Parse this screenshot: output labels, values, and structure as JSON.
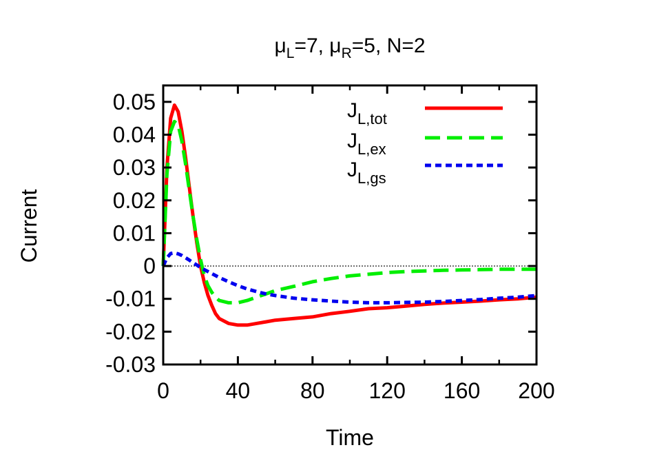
{
  "chart_data": {
    "type": "line",
    "title": {
      "parts": [
        {
          "text": "μ",
          "sub": "L"
        },
        {
          "text": "=7, μ",
          "sub": "R"
        },
        {
          "text": "=5, N=2",
          "sub": ""
        }
      ]
    },
    "xlabel": "Time",
    "ylabel": "Current",
    "xlim": [
      0,
      200
    ],
    "ylim": [
      -0.03,
      0.055
    ],
    "xticks": [
      0,
      40,
      80,
      120,
      160,
      200
    ],
    "yticks": [
      -0.03,
      -0.02,
      -0.01,
      0,
      0.01,
      0.02,
      0.03,
      0.04,
      0.05
    ],
    "xtick_labels": [
      "0",
      "40",
      "80",
      "120",
      "160",
      "200"
    ],
    "ytick_labels": [
      "-0.03",
      "-0.02",
      "-0.01",
      "0",
      "0.01",
      "0.02",
      "0.03",
      "0.04",
      "0.05"
    ],
    "zero_line": true,
    "legend_position": "top-right",
    "series": [
      {
        "name": "J_L,tot",
        "label_main": "J",
        "label_sub": "L,tot",
        "color": "#ff0000",
        "dash": "solid",
        "x": [
          0,
          2,
          4,
          6,
          8,
          10,
          12,
          14,
          16,
          18,
          20,
          22,
          24,
          26,
          28,
          30,
          35,
          40,
          45,
          50,
          55,
          60,
          70,
          80,
          90,
          100,
          110,
          120,
          130,
          140,
          150,
          160,
          170,
          180,
          190,
          200
        ],
        "y": [
          0.0,
          0.03,
          0.045,
          0.049,
          0.047,
          0.041,
          0.033,
          0.024,
          0.015,
          0.007,
          0.0,
          -0.005,
          -0.009,
          -0.012,
          -0.0145,
          -0.016,
          -0.0175,
          -0.018,
          -0.018,
          -0.0175,
          -0.017,
          -0.0165,
          -0.016,
          -0.0155,
          -0.0145,
          -0.0138,
          -0.013,
          -0.0127,
          -0.0122,
          -0.0117,
          -0.0113,
          -0.011,
          -0.0107,
          -0.0103,
          -0.01,
          -0.0095
        ]
      },
      {
        "name": "J_L,ex",
        "label_main": "J",
        "label_sub": "L,ex",
        "color": "#00ee00",
        "dash": "dashed",
        "x": [
          0,
          2,
          4,
          6,
          8,
          10,
          12,
          14,
          16,
          18,
          20,
          22,
          24,
          26,
          28,
          30,
          35,
          40,
          45,
          50,
          55,
          60,
          70,
          80,
          90,
          100,
          110,
          120,
          130,
          140,
          150,
          160,
          170,
          180,
          190,
          200
        ],
        "y": [
          0.0,
          0.028,
          0.041,
          0.044,
          0.043,
          0.038,
          0.031,
          0.023,
          0.015,
          0.008,
          0.002,
          -0.003,
          -0.006,
          -0.008,
          -0.0095,
          -0.0105,
          -0.0112,
          -0.0112,
          -0.0105,
          -0.0095,
          -0.0085,
          -0.0075,
          -0.0062,
          -0.0048,
          -0.0038,
          -0.003,
          -0.0025,
          -0.002,
          -0.0017,
          -0.0015,
          -0.0013,
          -0.0012,
          -0.0011,
          -0.001,
          -0.001,
          -0.001
        ]
      },
      {
        "name": "J_L,gs",
        "label_main": "J",
        "label_sub": "L,gs",
        "color": "#0000ee",
        "dash": "dotted",
        "x": [
          0,
          2,
          4,
          6,
          8,
          10,
          12,
          14,
          16,
          18,
          20,
          25,
          30,
          35,
          40,
          45,
          50,
          55,
          60,
          70,
          80,
          90,
          100,
          110,
          120,
          130,
          140,
          150,
          160,
          170,
          180,
          190,
          200
        ],
        "y": [
          0.0,
          0.0025,
          0.0038,
          0.004,
          0.0037,
          0.0032,
          0.0025,
          0.0018,
          0.001,
          0.0003,
          -0.0005,
          -0.002,
          -0.0035,
          -0.0048,
          -0.006,
          -0.007,
          -0.0078,
          -0.0085,
          -0.009,
          -0.0098,
          -0.0103,
          -0.0107,
          -0.011,
          -0.0112,
          -0.0112,
          -0.0111,
          -0.011,
          -0.0108,
          -0.0105,
          -0.0102,
          -0.0098,
          -0.0095,
          -0.009
        ]
      }
    ]
  }
}
